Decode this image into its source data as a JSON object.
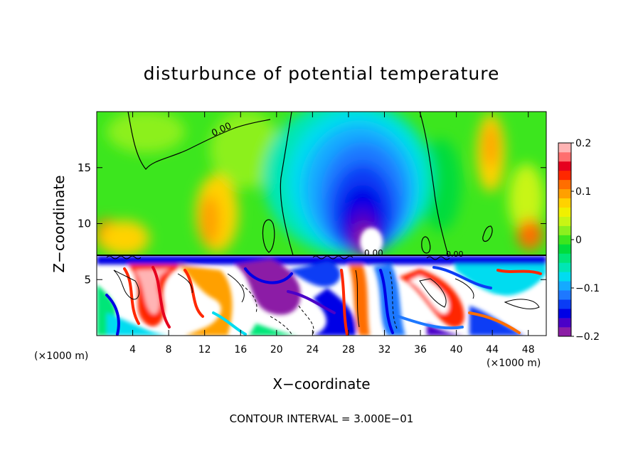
{
  "chart_data": {
    "type": "heatmap",
    "title": "disturbunce of potential temperature",
    "xlabel": "X−coordinate",
    "ylabel": "Z−coordinate",
    "x_unit": "(×1000 m)",
    "xlim": [
      0,
      50
    ],
    "ylim": [
      0,
      20
    ],
    "x_ticks": [
      4,
      8,
      12,
      16,
      20,
      24,
      28,
      32,
      36,
      40,
      44,
      48
    ],
    "x_tick_labels": [
      "4",
      "8",
      "12",
      "16",
      "20",
      "24",
      "28",
      "32",
      "36",
      "40",
      "44",
      "48"
    ],
    "y_ticks": [
      5,
      10,
      15
    ],
    "y_tick_labels": [
      "5",
      "10",
      "15"
    ],
    "footer": "CONTOUR INTERVAL = 3.000E−01",
    "contour_label": "0.00",
    "colorbar": {
      "min": -0.2,
      "max": 0.2,
      "tick_values": [
        0.2,
        0.1,
        0,
        -0.1,
        -0.2
      ],
      "tick_labels": [
        "0.2",
        "0.1",
        "0",
        "−0.1",
        "−0.2"
      ],
      "colors": [
        "#8c1ea6",
        "#4b00c8",
        "#0000e6",
        "#0a3cf5",
        "#1e78ff",
        "#14aaff",
        "#00dcf0",
        "#00e6b4",
        "#00e678",
        "#00dc3c",
        "#3ce61e",
        "#8cf01e",
        "#c8f514",
        "#f0f000",
        "#ffd200",
        "#ffa000",
        "#ff6e00",
        "#ff2800",
        "#e6001e",
        "#ff6e6e",
        "#ffb4b4"
      ]
    },
    "features": [
      {
        "kind": "cold_anomaly",
        "x_center": 31,
        "z_top": 17,
        "min_value": -0.2
      },
      {
        "kind": "boundary_layer_turbulence",
        "z_range": [
          0,
          7.2
        ]
      }
    ]
  }
}
